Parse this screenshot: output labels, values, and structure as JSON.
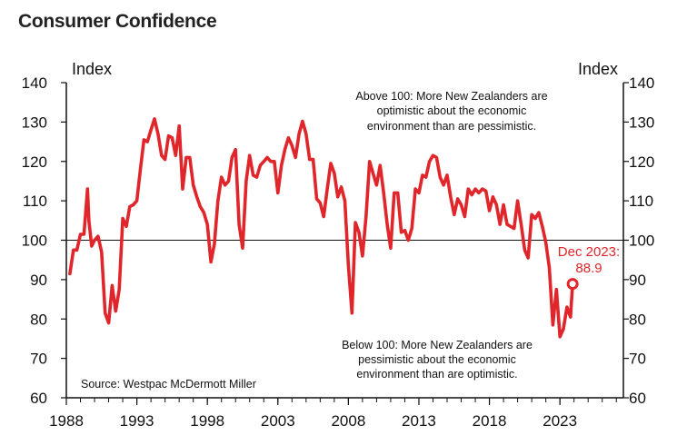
{
  "chart_data": {
    "type": "line",
    "title": "Consumer Confidence",
    "ylabel_left": "Index",
    "ylabel_right": "Index",
    "ylim": [
      60,
      140
    ],
    "xlim": [
      1988,
      2027.5
    ],
    "y_ticks": [
      60,
      70,
      80,
      90,
      100,
      110,
      120,
      130,
      140
    ],
    "x_ticks": [
      1988,
      1993,
      1998,
      2003,
      2008,
      2013,
      2018,
      2023
    ],
    "x_tick_labels": [
      "1988",
      "1993",
      "1998",
      "2003",
      "2008",
      "2013",
      "2018",
      "2023"
    ],
    "reference_line": 100,
    "annotation_above": [
      "Above 100: More New Zealanders are",
      "optimistic about the economic",
      "environment than are pessimistic."
    ],
    "annotation_below": [
      "Below 100: More New Zealanders are",
      "pessimistic about the economic",
      "environment than are optimistic."
    ],
    "source": "Source: Westpac McDermott Miller",
    "last_point_label": [
      "Dec 2023:",
      "88.9"
    ],
    "last_point": {
      "x": 2023.9,
      "y": 88.9
    },
    "colors": {
      "line": "#e0262b",
      "axis": "#111111",
      "text": "#111111"
    },
    "series": [
      {
        "name": "Consumer Confidence",
        "x": [
          1988.25,
          1988.5,
          1988.75,
          1989.0,
          1989.25,
          1989.5,
          1989.6,
          1989.8,
          1990.0,
          1990.25,
          1990.5,
          1990.75,
          1991.0,
          1991.25,
          1991.5,
          1991.75,
          1992.0,
          1992.25,
          1992.5,
          1992.75,
          1993.0,
          1993.25,
          1993.5,
          1993.75,
          1994.0,
          1994.25,
          1994.5,
          1994.75,
          1995.0,
          1995.25,
          1995.5,
          1995.75,
          1996.0,
          1996.25,
          1996.5,
          1996.75,
          1997.0,
          1997.25,
          1997.5,
          1997.75,
          1998.0,
          1998.25,
          1998.5,
          1998.75,
          1999.0,
          1999.25,
          1999.5,
          1999.75,
          2000.0,
          2000.25,
          2000.5,
          2000.75,
          2001.0,
          2001.25,
          2001.5,
          2001.75,
          2002.0,
          2002.25,
          2002.5,
          2002.75,
          2003.0,
          2003.25,
          2003.5,
          2003.75,
          2004.0,
          2004.25,
          2004.5,
          2004.75,
          2005.0,
          2005.25,
          2005.5,
          2005.75,
          2006.0,
          2006.25,
          2006.5,
          2006.75,
          2007.0,
          2007.25,
          2007.5,
          2007.75,
          2008.0,
          2008.25,
          2008.5,
          2008.75,
          2009.0,
          2009.25,
          2009.5,
          2009.75,
          2010.0,
          2010.25,
          2010.5,
          2010.75,
          2011.0,
          2011.25,
          2011.5,
          2011.75,
          2012.0,
          2012.25,
          2012.5,
          2012.75,
          2013.0,
          2013.25,
          2013.5,
          2013.75,
          2014.0,
          2014.25,
          2014.5,
          2014.75,
          2015.0,
          2015.25,
          2015.5,
          2015.75,
          2016.0,
          2016.25,
          2016.5,
          2016.75,
          2017.0,
          2017.25,
          2017.5,
          2017.75,
          2018.0,
          2018.25,
          2018.5,
          2018.75,
          2019.0,
          2019.25,
          2019.5,
          2019.75,
          2020.0,
          2020.25,
          2020.5,
          2020.75,
          2021.0,
          2021.25,
          2021.5,
          2021.75,
          2022.0,
          2022.25,
          2022.5,
          2022.75,
          2023.0,
          2023.25,
          2023.5,
          2023.75,
          2023.9
        ],
        "values": [
          91.5,
          97.5,
          97.5,
          101.5,
          101.5,
          113,
          105,
          98.5,
          100,
          101,
          97,
          81.5,
          79,
          88.5,
          82,
          87.5,
          105.5,
          103.5,
          108.5,
          109,
          110,
          118,
          125.5,
          125,
          128,
          130.8,
          127,
          121.5,
          120.5,
          126.5,
          126,
          121.5,
          129,
          113,
          121,
          121,
          114,
          111,
          108.5,
          107,
          104,
          94.5,
          99,
          110,
          116,
          114,
          115,
          121,
          123,
          104,
          98,
          115,
          121.5,
          116.5,
          116,
          119,
          120,
          121,
          120,
          120,
          112,
          119,
          123,
          126,
          124,
          121,
          127,
          130.2,
          127,
          120.5,
          120.5,
          110.5,
          109.5,
          106,
          113,
          119.5,
          117,
          111,
          113.5,
          110,
          93.5,
          81.5,
          104.5,
          102,
          96,
          106,
          120,
          117,
          114,
          119,
          112,
          104,
          98,
          112,
          112,
          102,
          102.5,
          100,
          103,
          113,
          112,
          116.5,
          116,
          120,
          121.5,
          121,
          116,
          114,
          116.5,
          111,
          106.5,
          110.5,
          109,
          106,
          113,
          111.5,
          113,
          112,
          113,
          112.5,
          107.5,
          111,
          109,
          104,
          109,
          104,
          103.5,
          103,
          110,
          104,
          97.5,
          95.5,
          106.5,
          105.5,
          107,
          103.5,
          99.5,
          93,
          78.5,
          87.5,
          75.5,
          77.5,
          83,
          80.5,
          88.9
        ]
      }
    ]
  }
}
